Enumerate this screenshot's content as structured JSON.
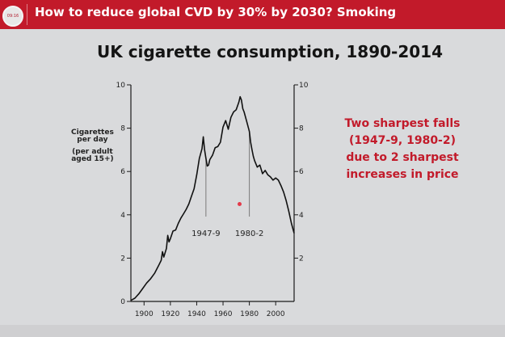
{
  "header": {
    "timer": "09:16",
    "title": "How to reduce global CVD by 30% by 2030? Smoking"
  },
  "slide": {
    "title": "UK cigarette consumption, 1890-2014",
    "annotation_lines": [
      "Two sharpest falls",
      "(1947-9, 1980-2)",
      "due to 2 sharpest",
      "increases in price"
    ]
  },
  "colors": {
    "header_bg": "#c21a2a",
    "annotation": "#c21a2a",
    "slide_bg": "#d9dadc",
    "line": "#111111"
  },
  "chart_data": {
    "type": "line",
    "title": "UK cigarette consumption, 1890-2014",
    "ylabel_lines": [
      "Cigarettes",
      "per day",
      "(per adult",
      "aged 15+)"
    ],
    "xlim": [
      1890,
      2014
    ],
    "ylim": [
      0,
      10
    ],
    "xticks": [
      1900,
      1920,
      1940,
      1960,
      1980,
      2000
    ],
    "yticks_left": [
      0,
      2,
      4,
      6,
      8,
      10
    ],
    "yticks_right": [
      2,
      4,
      6,
      8,
      10
    ],
    "grid": false,
    "annotations": [
      {
        "label": "1947-9",
        "x": 1947
      },
      {
        "label": "1980-2",
        "x": 1980
      }
    ],
    "series": [
      {
        "x": [
          1890,
          1893,
          1896,
          1899,
          1902,
          1905,
          1908,
          1911,
          1913,
          1914,
          1915,
          1917,
          1918,
          1919,
          1920,
          1922,
          1924,
          1926,
          1928,
          1930,
          1932,
          1934,
          1936,
          1938,
          1940,
          1942,
          1944,
          1945,
          1946,
          1947,
          1948,
          1949,
          1950,
          1952,
          1954,
          1956,
          1958,
          1960,
          1962,
          1964,
          1966,
          1968,
          1970,
          1972,
          1973,
          1974,
          1975,
          1976,
          1978,
          1980,
          1981,
          1982,
          1983,
          1984,
          1986,
          1988,
          1990,
          1992,
          1994,
          1996,
          1998,
          2000,
          2002,
          2004,
          2006,
          2008,
          2010,
          2012,
          2014
        ],
        "y": [
          0.05,
          0.15,
          0.35,
          0.6,
          0.85,
          1.05,
          1.3,
          1.65,
          1.9,
          2.3,
          2.05,
          2.45,
          3.05,
          2.75,
          2.9,
          3.25,
          3.3,
          3.6,
          3.85,
          4.05,
          4.25,
          4.5,
          4.85,
          5.2,
          5.85,
          6.6,
          7.05,
          7.6,
          7.0,
          6.6,
          6.25,
          6.3,
          6.55,
          6.75,
          7.1,
          7.15,
          7.35,
          8.05,
          8.35,
          7.95,
          8.5,
          8.75,
          8.85,
          9.2,
          9.45,
          9.3,
          8.9,
          8.75,
          8.3,
          7.85,
          7.35,
          7.0,
          6.7,
          6.5,
          6.2,
          6.3,
          5.9,
          6.05,
          5.85,
          5.75,
          5.6,
          5.7,
          5.6,
          5.35,
          5.05,
          4.65,
          4.15,
          3.6,
          3.15
        ]
      }
    ]
  }
}
